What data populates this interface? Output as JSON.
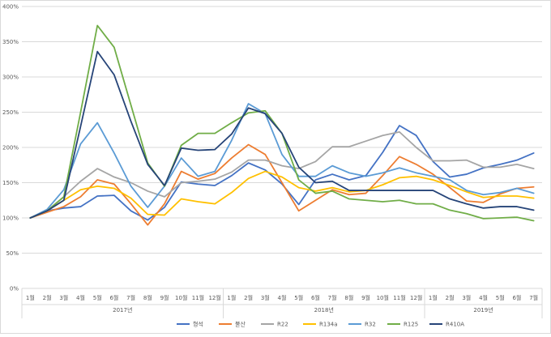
{
  "chart_data": {
    "type": "line",
    "title": "",
    "xlabel": "",
    "ylabel": "",
    "ylim": [
      0,
      400
    ],
    "y_ticks": [
      "0%",
      "50%",
      "100%",
      "150%",
      "200%",
      "250%",
      "300%",
      "350%",
      "400%"
    ],
    "y_tick_values": [
      0,
      50,
      100,
      150,
      200,
      250,
      300,
      350,
      400
    ],
    "grid": true,
    "legend_position": "bottom",
    "groups": [
      {
        "label": "2017년",
        "categories": [
          "1월",
          "2월",
          "3월",
          "4월",
          "5월",
          "6월",
          "7월",
          "8월",
          "9월",
          "10월",
          "11월",
          "12월"
        ]
      },
      {
        "label": "2018년",
        "categories": [
          "1월",
          "2월",
          "3월",
          "4월",
          "5월",
          "6월",
          "7월",
          "8월",
          "9월",
          "10월",
          "11월",
          "12월"
        ]
      },
      {
        "label": "2019년",
        "categories": [
          "1월",
          "2월",
          "3월",
          "4월",
          "5월",
          "6월",
          "7월"
        ]
      }
    ],
    "series": [
      {
        "name": "형석",
        "color": "#4472C4",
        "values": [
          100,
          110,
          114,
          116,
          131,
          132,
          110,
          97,
          115,
          151,
          148,
          146,
          160,
          178,
          168,
          148,
          119,
          154,
          162,
          154,
          160,
          193,
          231,
          217,
          180,
          158,
          162,
          171,
          176,
          182,
          192
        ]
      },
      {
        "name": "불산",
        "color": "#ED7D31",
        "values": [
          100,
          108,
          116,
          130,
          154,
          148,
          120,
          90,
          120,
          166,
          155,
          163,
          185,
          204,
          190,
          150,
          110,
          125,
          140,
          133,
          135,
          160,
          187,
          176,
          162,
          143,
          124,
          122,
          134,
          142,
          144
        ]
      },
      {
        "name": "R22",
        "color": "#A5A5A5",
        "values": [
          100,
          110,
          130,
          152,
          170,
          158,
          150,
          138,
          130,
          150,
          152,
          155,
          165,
          182,
          182,
          174,
          170,
          180,
          201,
          201,
          209,
          217,
          222,
          200,
          181,
          181,
          182,
          172,
          172,
          176,
          170
        ]
      },
      {
        "name": "R134a",
        "color": "#FFC000",
        "values": [
          100,
          110,
          125,
          140,
          145,
          142,
          128,
          105,
          104,
          127,
          123,
          120,
          136,
          156,
          166,
          158,
          143,
          138,
          143,
          137,
          139,
          147,
          157,
          159,
          154,
          146,
          137,
          129,
          131,
          131,
          128
        ]
      },
      {
        "name": "R32",
        "color": "#5B9BD5",
        "values": [
          100,
          112,
          140,
          205,
          235,
          192,
          145,
          115,
          145,
          185,
          159,
          166,
          210,
          262,
          248,
          190,
          159,
          159,
          174,
          164,
          159,
          164,
          171,
          164,
          159,
          154,
          139,
          133,
          136,
          142,
          135
        ]
      },
      {
        "name": "R125",
        "color": "#70AD47",
        "values": [
          100,
          110,
          130,
          250,
          373,
          342,
          260,
          178,
          145,
          203,
          220,
          220,
          235,
          249,
          252,
          220,
          154,
          135,
          138,
          127,
          125,
          123,
          125,
          120,
          120,
          111,
          106,
          99,
          100,
          101,
          96
        ]
      },
      {
        "name": "R410A",
        "color": "#264478",
        "values": [
          100,
          110,
          125,
          230,
          336,
          303,
          237,
          176,
          146,
          199,
          196,
          197,
          219,
          256,
          248,
          220,
          172,
          150,
          152,
          139,
          139,
          139,
          139,
          139,
          139,
          127,
          120,
          114,
          116,
          116,
          111
        ]
      }
    ]
  }
}
